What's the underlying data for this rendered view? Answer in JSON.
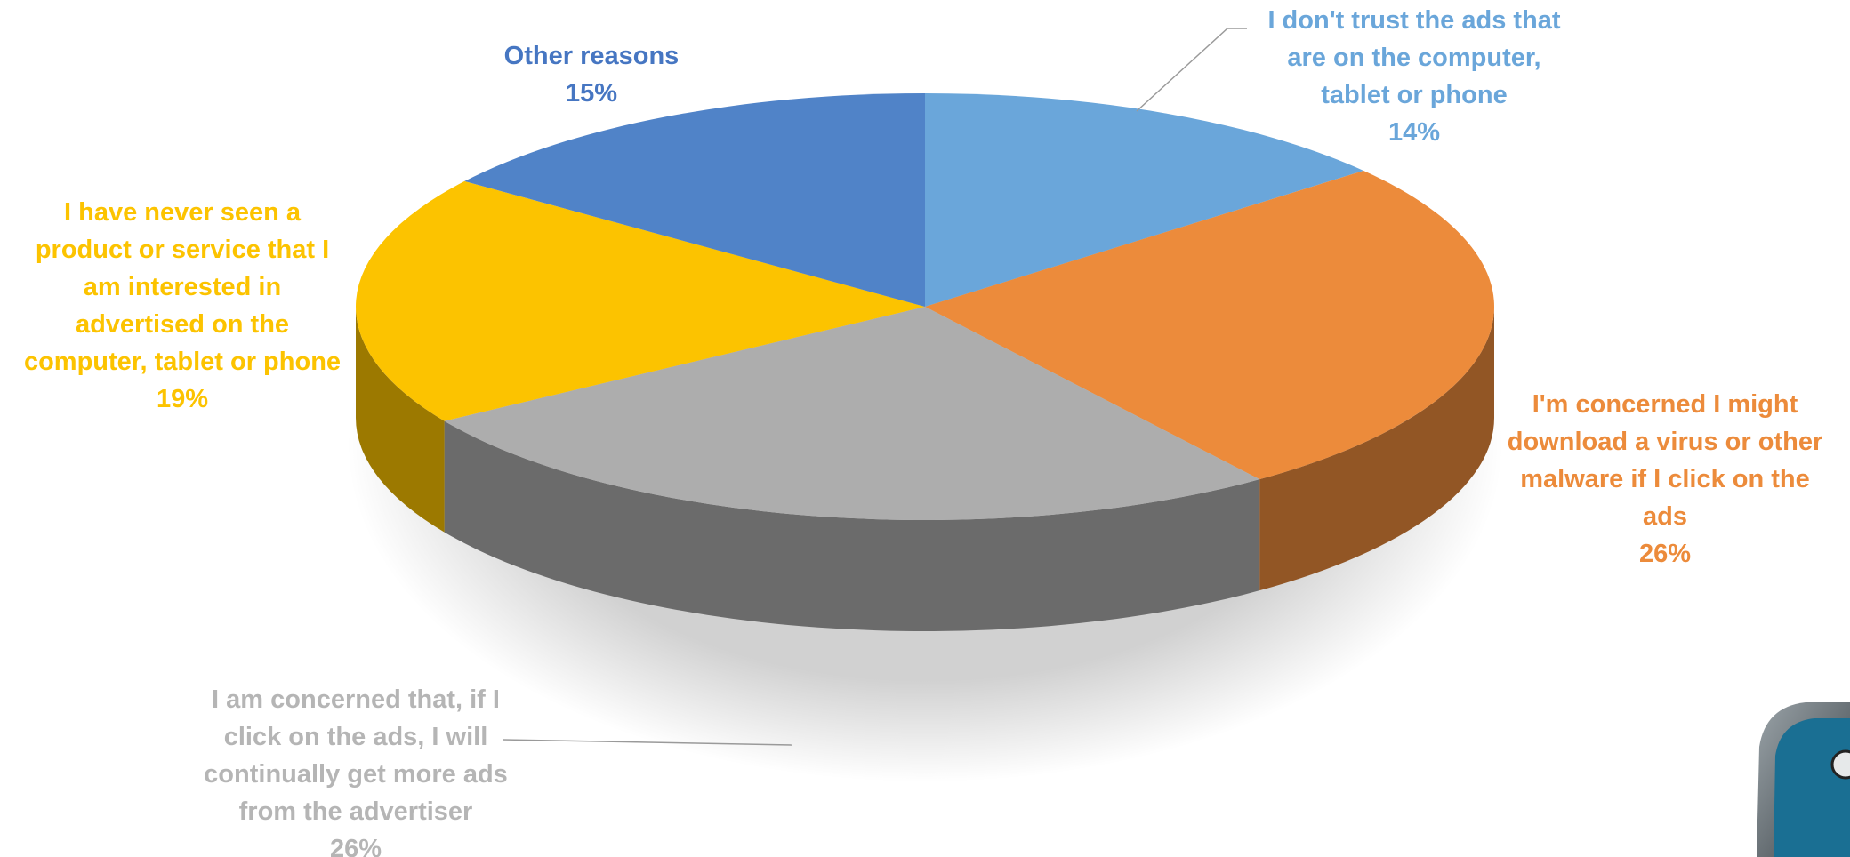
{
  "chart_data": {
    "type": "pie",
    "style": "3d-exploded-perspective",
    "title": "",
    "slices": [
      {
        "label": "I don't trust the ads that are on the computer, tablet or phone",
        "value": 14,
        "value_label": "14%",
        "color": "#6aa6da",
        "label_lines": [
          "I don't trust the ads that",
          "are on the computer,",
          "tablet or phone"
        ]
      },
      {
        "label": "I'm concerned I might download a virus or other malware if I click on the ads",
        "value": 26,
        "value_label": "26%",
        "color": "#ec8b3b",
        "label_lines": [
          "I'm concerned I might",
          "download a virus or other",
          "malware if I click on the",
          "ads"
        ]
      },
      {
        "label": "I am concerned that, if I click on the ads, I will continually get more ads from the advertiser",
        "value": 26,
        "value_label": "26%",
        "color": "#adadad",
        "label_lines": [
          "I am concerned that, if I",
          "click on the ads, I will",
          "continually get more ads",
          "from the advertiser"
        ]
      },
      {
        "label": "I have never seen a product or service that I am interested in advertised on the computer, tablet or phone",
        "value": 19,
        "value_label": "19%",
        "color": "#fcc300",
        "label_lines": [
          "I have never seen a",
          "product or service that I",
          "am interested in",
          "advertised on the",
          "computer, tablet or phone"
        ]
      },
      {
        "label": "Other reasons",
        "value": 15,
        "value_label": "15%",
        "color": "#5083c8",
        "label_lines": [
          "Other reasons"
        ]
      }
    ],
    "legend": "none",
    "data_labels": "outside"
  },
  "decoration": {
    "corner_icon": "rounded-button-icon"
  }
}
